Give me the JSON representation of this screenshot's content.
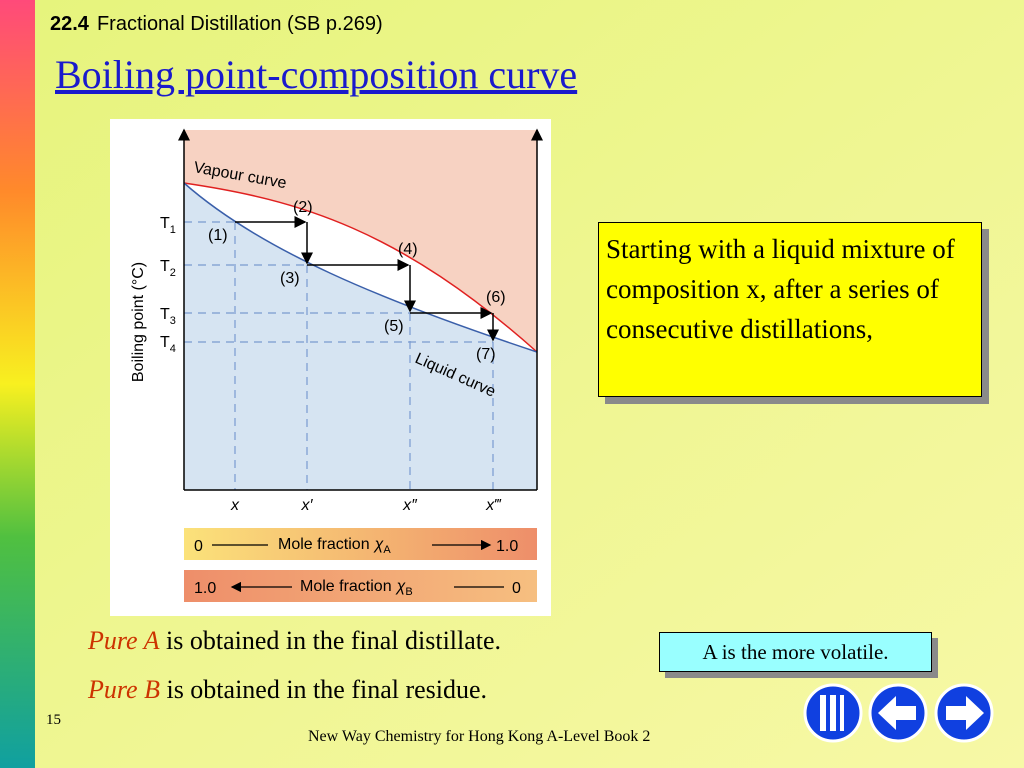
{
  "header": {
    "section": "22.4",
    "title": "Fractional Distillation (SB p.269)",
    "heading": "Boiling point-composition curve"
  },
  "diagram": {
    "y_axis_label": "Boiling point (°C)",
    "vapour_label": "Vapour curve",
    "liquid_label": "Liquid curve",
    "temperatures": [
      {
        "symbol": "T",
        "subscript": "1"
      },
      {
        "symbol": "T",
        "subscript": "2"
      },
      {
        "symbol": "T",
        "subscript": "3"
      },
      {
        "symbol": "T",
        "subscript": "4"
      }
    ],
    "points": [
      "(1)",
      "(2)",
      "(3)",
      "(4)",
      "(5)",
      "(6)",
      "(7)"
    ],
    "compositions": [
      "x",
      "x′",
      "x″",
      "x‴"
    ],
    "bar_a": {
      "left": "0",
      "label": "Mole fraction",
      "symbol": "χ",
      "subscript": "A",
      "right": "1.0"
    },
    "bar_b": {
      "left": "1.0",
      "label": "Mole fraction",
      "symbol": "χ",
      "subscript": "B",
      "right": "0"
    }
  },
  "callout": "Starting with a liquid mixture of composition x, after a series of consecutive distillations,",
  "bullets": [
    {
      "emphasis": "Pure A",
      "text": "is obtained in the final distillate."
    },
    {
      "emphasis": "Pure B",
      "text": "is obtained in the final residue."
    }
  ],
  "note": "A is the more volatile.",
  "footer": {
    "page": "15",
    "book": "New Way Chemistry for Hong Kong A-Level Book 2"
  }
}
